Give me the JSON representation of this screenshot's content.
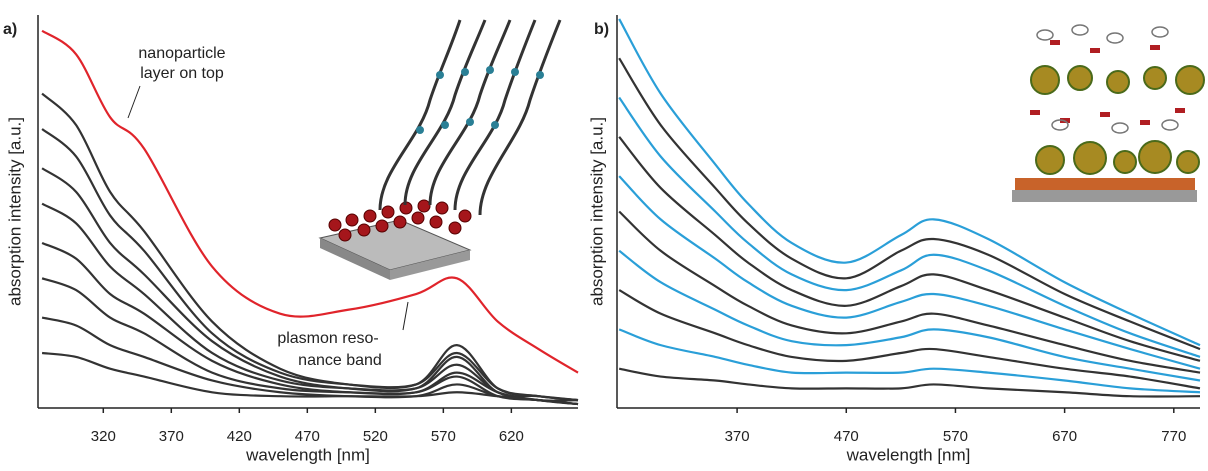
{
  "chart_data": [
    {
      "type": "line",
      "panel_label": "a)",
      "xlabel": "wavelength [nm]",
      "ylabel": "absorption intensity [a.u.]",
      "xlim": [
        272,
        669
      ],
      "ylim": [
        0,
        100
      ],
      "xticks": [
        320,
        370,
        420,
        470,
        520,
        570,
        620
      ],
      "annotations": [
        "nanoparticle",
        "layer on top",
        "plasmon reso-",
        "nance band"
      ],
      "x": [
        275,
        300,
        325,
        350,
        400,
        450,
        500,
        550,
        580,
        610,
        640,
        669
      ],
      "series": [
        {
          "color": "#e0242b",
          "values": [
            96,
            90,
            74,
            66,
            36,
            24,
            25,
            29,
            33,
            22,
            15,
            9
          ]
        },
        {
          "color": "#333333",
          "values": [
            80,
            72,
            55,
            45,
            22,
            10,
            6,
            6,
            16,
            5,
            3,
            2
          ]
        },
        {
          "color": "#333333",
          "values": [
            71,
            64,
            49,
            40,
            19,
            9,
            6,
            6,
            14,
            5,
            3,
            2
          ]
        },
        {
          "color": "#333333",
          "values": [
            61,
            55,
            42,
            34,
            17,
            8,
            5,
            5,
            13,
            4,
            3,
            2
          ]
        },
        {
          "color": "#333333",
          "values": [
            52,
            47,
            36,
            29,
            14,
            7,
            5,
            5,
            11,
            4,
            2,
            2
          ]
        },
        {
          "color": "#333333",
          "values": [
            42,
            38,
            29,
            24,
            12,
            6,
            4,
            4,
            9,
            4,
            2,
            1
          ]
        },
        {
          "color": "#333333",
          "values": [
            33,
            30,
            23,
            19,
            9,
            5,
            4,
            4,
            8,
            3,
            2,
            1
          ]
        },
        {
          "color": "#333333",
          "values": [
            23,
            21,
            16,
            13,
            7,
            4,
            3,
            3,
            6,
            3,
            2,
            1
          ]
        },
        {
          "color": "#333333",
          "values": [
            14,
            13,
            10,
            8,
            4,
            3,
            3,
            3,
            4,
            3,
            2,
            1
          ]
        }
      ]
    },
    {
      "type": "line",
      "panel_label": "b)",
      "xlabel": "wavelength [nm]",
      "ylabel": "absorption intensity [a.u.]",
      "xlim": [
        260,
        794
      ],
      "ylim": [
        0,
        100
      ],
      "xticks": [
        370,
        470,
        570,
        670,
        770
      ],
      "x": [
        262,
        300,
        350,
        380,
        420,
        470,
        520,
        550,
        600,
        670,
        730,
        794
      ],
      "series": [
        {
          "color": "#2a9fd8",
          "values": [
            99,
            80,
            62,
            52,
            42,
            37,
            44,
            48,
            43,
            32,
            24,
            16
          ]
        },
        {
          "color": "#333333",
          "values": [
            89,
            72,
            56,
            47,
            38,
            33,
            40,
            43,
            39,
            29,
            22,
            15
          ]
        },
        {
          "color": "#2a9fd8",
          "values": [
            79,
            64,
            50,
            42,
            34,
            30,
            35,
            39,
            35,
            26,
            19,
            13
          ]
        },
        {
          "color": "#333333",
          "values": [
            69,
            56,
            44,
            37,
            30,
            26,
            31,
            34,
            30,
            23,
            17,
            12
          ]
        },
        {
          "color": "#2a9fd8",
          "values": [
            59,
            48,
            38,
            32,
            26,
            23,
            27,
            29,
            26,
            20,
            15,
            10
          ]
        },
        {
          "color": "#333333",
          "values": [
            50,
            40,
            31,
            26,
            21,
            19,
            22,
            24,
            21,
            16,
            12,
            9
          ]
        },
        {
          "color": "#2a9fd8",
          "values": [
            40,
            32,
            25,
            21,
            17,
            16,
            18,
            20,
            18,
            13,
            10,
            7
          ]
        },
        {
          "color": "#333333",
          "values": [
            30,
            24,
            19,
            16,
            13,
            12,
            14,
            15,
            13,
            10,
            8,
            5
          ]
        },
        {
          "color": "#2a9fd8",
          "values": [
            20,
            16,
            13,
            11,
            9,
            9,
            9,
            10,
            9,
            7,
            5,
            4
          ]
        },
        {
          "color": "#333333",
          "values": [
            10,
            8,
            7,
            6,
            5,
            5,
            5,
            6,
            5,
            4,
            3,
            3
          ]
        }
      ]
    }
  ]
}
